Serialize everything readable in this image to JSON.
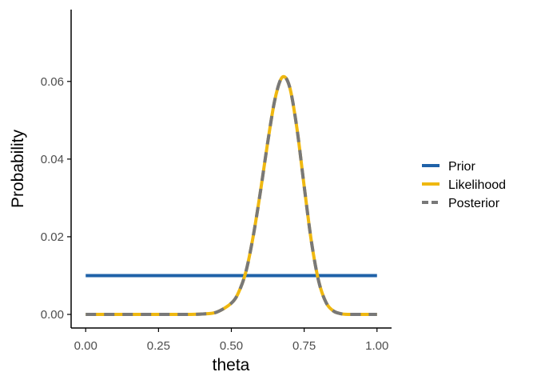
{
  "chart_data": {
    "type": "line",
    "title": "",
    "xlabel": "theta",
    "ylabel": "Probability",
    "xlim": [
      -0.05,
      1.05
    ],
    "ylim": [
      -0.0035,
      0.0785
    ],
    "x_ticks": [
      0.0,
      0.25,
      0.5,
      0.75,
      1.0
    ],
    "x_tick_labels": [
      "0.00",
      "0.25",
      "0.50",
      "0.75",
      "1.00"
    ],
    "y_ticks": [
      0.0,
      0.02,
      0.04,
      0.06
    ],
    "y_tick_labels": [
      "0.00",
      "0.02",
      "0.04",
      "0.06"
    ],
    "grid": false,
    "legend_position": "right",
    "x": [
      0.0,
      0.05,
      0.1,
      0.15,
      0.2,
      0.25,
      0.3,
      0.35,
      0.4,
      0.45,
      0.5,
      0.525,
      0.55,
      0.575,
      0.6,
      0.625,
      0.65,
      0.675,
      0.7,
      0.725,
      0.75,
      0.775,
      0.8,
      0.825,
      0.85,
      0.875,
      0.9,
      0.95,
      1.0
    ],
    "series": [
      {
        "name": "Prior",
        "color": "#1F62A8",
        "dash": "solid",
        "values": [
          0.01,
          0.01,
          0.01,
          0.01,
          0.01,
          0.01,
          0.01,
          0.01,
          0.01,
          0.01,
          0.01,
          0.01,
          0.01,
          0.01,
          0.01,
          0.01,
          0.01,
          0.01,
          0.01,
          0.01,
          0.01,
          0.01,
          0.01,
          0.01,
          0.01,
          0.01,
          0.01,
          0.01,
          0.01
        ]
      },
      {
        "name": "Likelihood",
        "color": "#EFB810",
        "dash": "solid",
        "values": [
          0.0,
          0.0,
          0.0,
          0.0,
          0.0,
          0.0,
          0.0,
          0.0,
          0.0001,
          0.0006,
          0.0029,
          0.0057,
          0.011,
          0.0201,
          0.0317,
          0.0444,
          0.0555,
          0.0611,
          0.0586,
          0.048,
          0.033,
          0.0187,
          0.0085,
          0.0031,
          0.0009,
          0.0002,
          0.0,
          0.0,
          0.0
        ]
      },
      {
        "name": "Posterior",
        "color": "#787878",
        "dash": "dashed",
        "values": [
          0.0,
          0.0,
          0.0,
          0.0,
          0.0,
          0.0,
          0.0,
          0.0,
          0.0001,
          0.0006,
          0.0029,
          0.0057,
          0.011,
          0.0201,
          0.0317,
          0.0444,
          0.0555,
          0.0611,
          0.0586,
          0.048,
          0.033,
          0.0187,
          0.0085,
          0.0031,
          0.0009,
          0.0002,
          0.0,
          0.0,
          0.0
        ]
      }
    ]
  }
}
